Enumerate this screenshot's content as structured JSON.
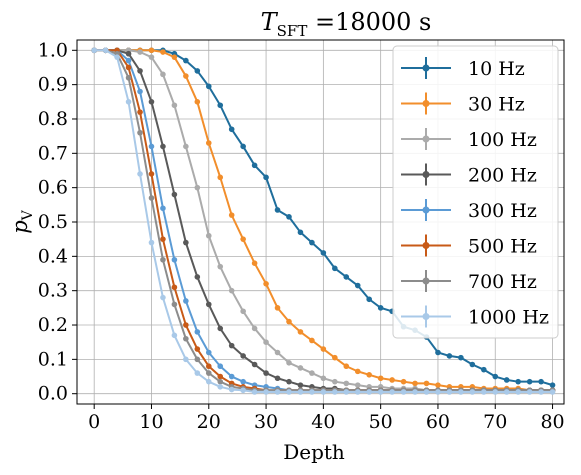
{
  "chart_data": {
    "type": "line",
    "title": {
      "symbol": "T",
      "subscript": "SFT",
      "rest": " =18000 s"
    },
    "xlabel": "Depth",
    "ylabel": {
      "symbol": "p",
      "subscript": "V"
    },
    "xlim": [
      -3,
      82
    ],
    "ylim": [
      -0.03,
      1.03
    ],
    "xticks": [
      0,
      10,
      20,
      30,
      40,
      50,
      60,
      70,
      80
    ],
    "yticks": [
      0.0,
      0.1,
      0.2,
      0.3,
      0.4,
      0.5,
      0.6,
      0.7,
      0.8,
      0.9,
      1.0
    ],
    "xtick_labels": [
      "0",
      "10",
      "20",
      "30",
      "40",
      "50",
      "60",
      "70",
      "80"
    ],
    "ytick_labels": [
      "0.0",
      "0.1",
      "0.2",
      "0.3",
      "0.4",
      "0.5",
      "0.6",
      "0.7",
      "0.8",
      "0.9",
      "1.0"
    ],
    "grid": true,
    "legend_position": "top-right",
    "x": [
      0,
      2,
      4,
      6,
      8,
      10,
      12,
      14,
      16,
      18,
      20,
      22,
      24,
      26,
      28,
      30,
      32,
      34,
      36,
      38,
      40,
      42,
      44,
      46,
      48,
      50,
      52,
      54,
      56,
      58,
      60,
      62,
      64,
      66,
      68,
      70,
      72,
      74,
      76,
      78,
      80
    ],
    "series": [
      {
        "name": "10 Hz",
        "color": "#1f6e9c",
        "values": [
          1.0,
          1.0,
          1.0,
          1.0,
          1.0,
          1.0,
          1.0,
          0.99,
          0.97,
          0.94,
          0.895,
          0.84,
          0.77,
          0.72,
          0.665,
          0.63,
          0.535,
          0.515,
          0.47,
          0.44,
          0.41,
          0.365,
          0.34,
          0.315,
          0.275,
          0.25,
          0.24,
          0.195,
          0.185,
          0.165,
          0.12,
          0.11,
          0.105,
          0.085,
          0.07,
          0.05,
          0.04,
          0.035,
          0.035,
          0.035,
          0.025
        ]
      },
      {
        "name": "30 Hz",
        "color": "#f28e2b",
        "values": [
          1.0,
          1.0,
          1.0,
          1.0,
          1.0,
          1.0,
          0.995,
          0.98,
          0.925,
          0.85,
          0.73,
          0.63,
          0.52,
          0.45,
          0.38,
          0.32,
          0.25,
          0.21,
          0.18,
          0.155,
          0.13,
          0.105,
          0.08,
          0.065,
          0.055,
          0.045,
          0.04,
          0.035,
          0.03,
          0.03,
          0.025,
          0.02,
          0.02,
          0.02,
          0.015,
          0.015,
          0.015,
          0.015,
          0.01,
          0.01,
          0.01
        ]
      },
      {
        "name": "100 Hz",
        "color": "#ababab",
        "values": [
          1.0,
          1.0,
          1.0,
          1.0,
          0.995,
          0.98,
          0.93,
          0.84,
          0.72,
          0.6,
          0.46,
          0.37,
          0.3,
          0.24,
          0.19,
          0.15,
          0.12,
          0.09,
          0.075,
          0.06,
          0.045,
          0.035,
          0.03,
          0.025,
          0.02,
          0.02,
          0.015,
          0.015,
          0.015,
          0.01,
          0.01,
          0.01,
          0.01,
          0.01,
          0.01,
          0.01,
          0.01,
          0.01,
          0.01,
          0.01,
          0.01
        ]
      },
      {
        "name": "200 Hz",
        "color": "#595959",
        "values": [
          1.0,
          1.0,
          1.0,
          0.99,
          0.94,
          0.85,
          0.72,
          0.58,
          0.44,
          0.34,
          0.26,
          0.19,
          0.14,
          0.11,
          0.085,
          0.06,
          0.045,
          0.035,
          0.025,
          0.02,
          0.015,
          0.015,
          0.01,
          0.01,
          0.01,
          0.01,
          0.01,
          0.01,
          0.01,
          0.01,
          0.01,
          0.01,
          0.01,
          0.01,
          0.01,
          0.01,
          0.01,
          0.01,
          0.01,
          0.01,
          0.01
        ]
      },
      {
        "name": "300 Hz",
        "color": "#5b9bd5",
        "values": [
          1.0,
          1.0,
          1.0,
          0.97,
          0.88,
          0.72,
          0.54,
          0.39,
          0.27,
          0.18,
          0.12,
          0.08,
          0.05,
          0.035,
          0.025,
          0.02,
          0.015,
          0.01,
          0.01,
          0.01,
          0.01,
          0.01,
          0.01,
          0.01,
          0.01,
          0.01,
          0.01,
          0.01,
          0.01,
          0.01,
          0.01,
          0.01,
          0.01,
          0.01,
          0.01,
          0.01,
          0.01,
          0.01,
          0.01,
          0.01,
          0.01
        ]
      },
      {
        "name": "500 Hz",
        "color": "#c85a17",
        "values": [
          1.0,
          1.0,
          1.0,
          0.95,
          0.82,
          0.64,
          0.45,
          0.31,
          0.2,
          0.13,
          0.08,
          0.05,
          0.03,
          0.02,
          0.015,
          0.01,
          0.01,
          0.01,
          0.01,
          0.01,
          0.01,
          0.01,
          0.01,
          0.01,
          0.01,
          0.01,
          0.01,
          0.01,
          0.01,
          0.01,
          0.01,
          0.01,
          0.01,
          0.01,
          0.01,
          0.01,
          0.01,
          0.01,
          0.01,
          0.01,
          0.01
        ]
      },
      {
        "name": "700 Hz",
        "color": "#8c8c8c",
        "values": [
          1.0,
          1.0,
          0.99,
          0.92,
          0.76,
          0.57,
          0.39,
          0.26,
          0.16,
          0.1,
          0.06,
          0.035,
          0.02,
          0.015,
          0.01,
          0.01,
          0.01,
          0.01,
          0.01,
          0.01,
          0.01,
          0.01,
          0.01,
          0.01,
          0.01,
          0.01,
          0.01,
          0.01,
          0.01,
          0.01,
          0.01,
          0.01,
          0.01,
          0.01,
          0.01,
          0.01,
          0.01,
          0.01,
          0.01,
          0.01,
          0.01
        ]
      },
      {
        "name": "1000 Hz",
        "color": "#a9c9e8",
        "values": [
          1.0,
          1.0,
          0.98,
          0.85,
          0.64,
          0.44,
          0.28,
          0.17,
          0.1,
          0.06,
          0.035,
          0.02,
          0.012,
          0.01,
          0.005,
          0.005,
          0.005,
          0.005,
          0.005,
          0.005,
          0.005,
          0.005,
          0.005,
          0.005,
          0.005,
          0.005,
          0.005,
          0.005,
          0.005,
          0.005,
          0.005,
          0.005,
          0.005,
          0.005,
          0.005,
          0.005,
          0.005,
          0.005,
          0.005,
          0.005,
          0.005
        ]
      }
    ]
  }
}
